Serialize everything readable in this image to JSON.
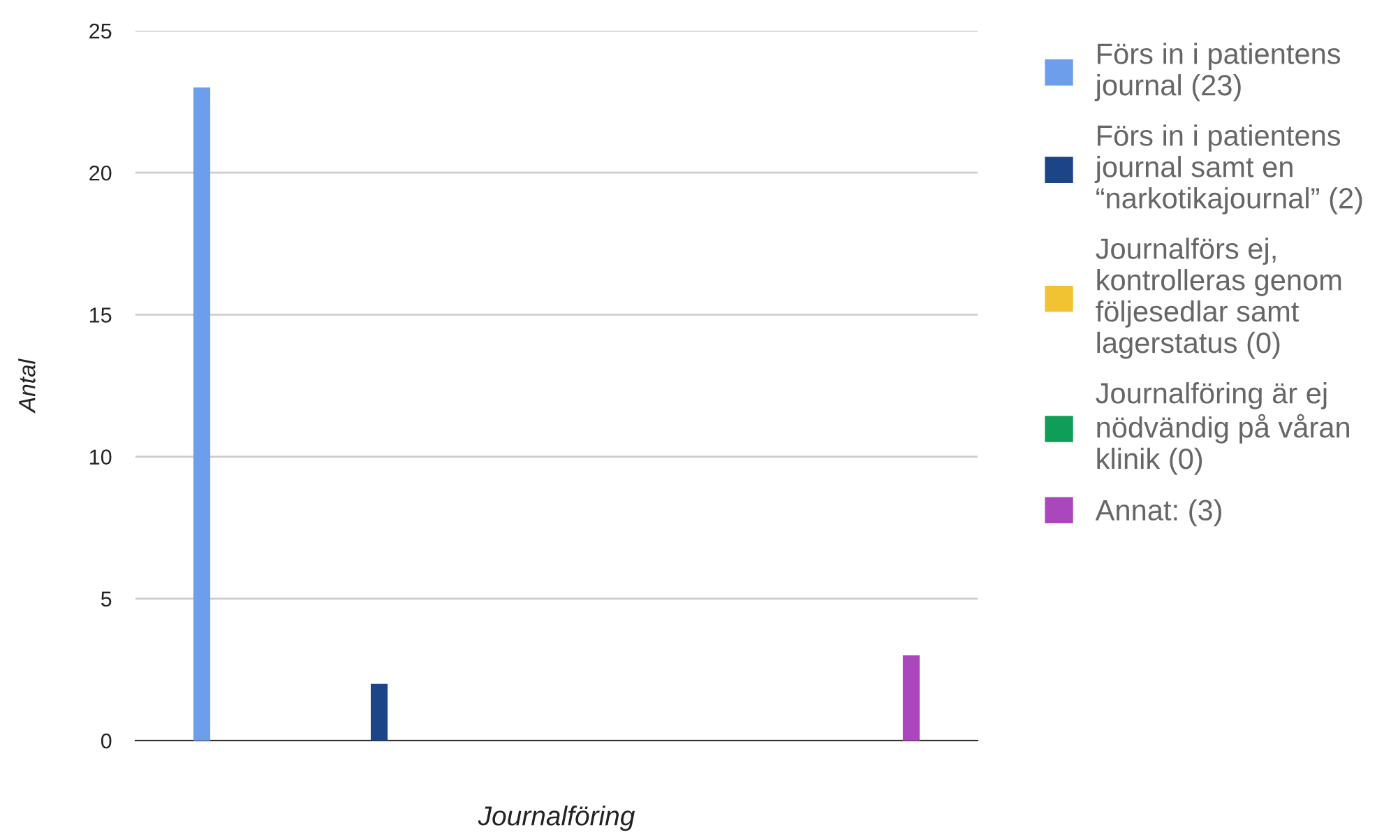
{
  "chart_data": {
    "type": "bar",
    "xlabel": "Journalföring",
    "ylabel": "Antal",
    "categories": [
      null
    ],
    "series": [
      {
        "name": "Förs in i patientens journal (23)",
        "color": "#6d9eeb",
        "values": [
          23
        ]
      },
      {
        "name": "Förs in i patientens journal samt en “narkotikajournal” (2)",
        "color": "#1c4587",
        "values": [
          2
        ]
      },
      {
        "name": "Journalförs ej, kontrolleras genom följesedlar samt lagerstatus (0)",
        "color": "#f1c232",
        "values": [
          0
        ]
      },
      {
        "name": "Journalföring är ej nödvändig på våran klinik (0)",
        "color": "#0f9d58",
        "values": [
          0
        ]
      },
      {
        "name": "Annat: (3)",
        "color": "#ab47bc",
        "values": [
          3
        ]
      }
    ],
    "ylim": [
      0,
      25
    ],
    "yticks": [
      0,
      5,
      10,
      15,
      20,
      25
    ],
    "grid": "y",
    "legend": "right"
  }
}
